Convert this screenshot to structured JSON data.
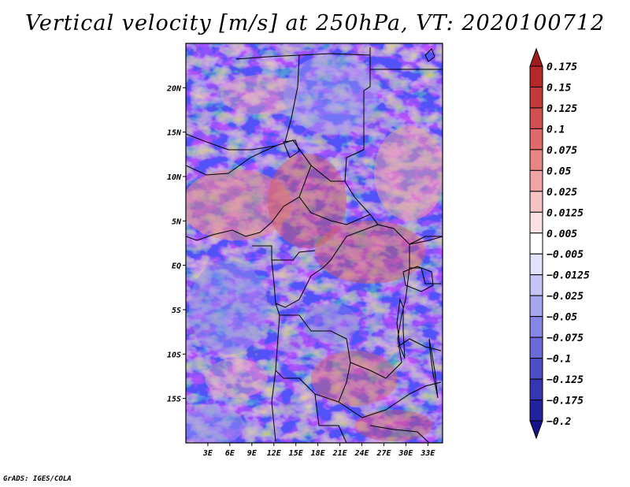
{
  "title": "Vertical velocity [m/s] at 250hPa, VT: 2020100712",
  "footer": "GrADS: IGES/COLA",
  "map": {
    "lon_range": [
      0,
      35
    ],
    "lat_range": [
      -20,
      25
    ],
    "lat_ticks": [
      {
        "value": 20,
        "label": "20N"
      },
      {
        "value": 15,
        "label": "15N"
      },
      {
        "value": 10,
        "label": "10N"
      },
      {
        "value": 5,
        "label": "5N"
      },
      {
        "value": 0,
        "label": "EQ"
      },
      {
        "value": -5,
        "label": "5S"
      },
      {
        "value": -10,
        "label": "10S"
      },
      {
        "value": -15,
        "label": "15S"
      }
    ],
    "lon_ticks": [
      {
        "value": 3,
        "label": "3E"
      },
      {
        "value": 6,
        "label": "6E"
      },
      {
        "value": 9,
        "label": "9E"
      },
      {
        "value": 12,
        "label": "12E"
      },
      {
        "value": 15,
        "label": "15E"
      },
      {
        "value": 18,
        "label": "18E"
      },
      {
        "value": 21,
        "label": "21E"
      },
      {
        "value": 24,
        "label": "24E"
      },
      {
        "value": 27,
        "label": "27E"
      },
      {
        "value": 30,
        "label": "30E"
      },
      {
        "value": 33,
        "label": "33E"
      }
    ]
  },
  "colorbar": {
    "labels": [
      "0.175",
      "0.15",
      "0.125",
      "0.1",
      "0.075",
      "0.05",
      "0.025",
      "0.0125",
      "0.005",
      "−0.005",
      "−0.0125",
      "−0.025",
      "−0.05",
      "−0.075",
      "−0.1",
      "−0.125",
      "−0.175",
      "−0.2"
    ],
    "colors": [
      "#a01c1c",
      "#b52828",
      "#c43a3a",
      "#d24f4f",
      "#de6a6a",
      "#e88686",
      "#f0a4a4",
      "#f6c4c4",
      "#fbe2e2",
      "#ffffff",
      "#e2e2fb",
      "#c4c4f6",
      "#a6a6f0",
      "#8686e6",
      "#6a6ad8",
      "#4e4ec8",
      "#3636b4",
      "#22229e",
      "#141488"
    ]
  }
}
